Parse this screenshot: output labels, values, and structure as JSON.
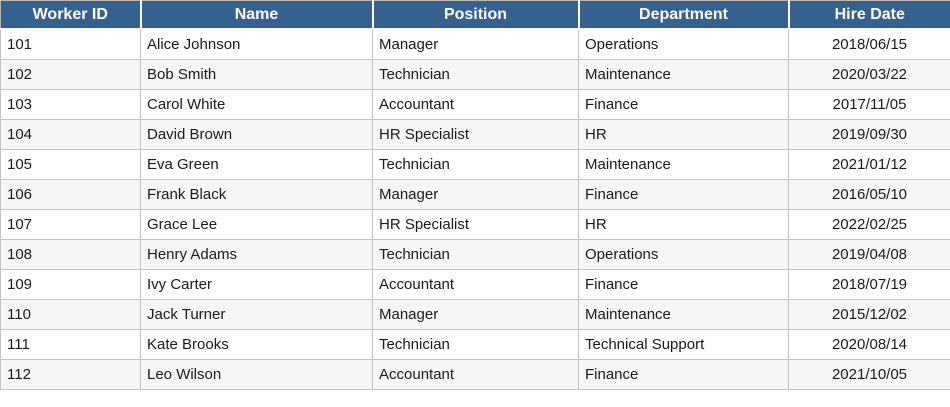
{
  "table": {
    "columns": [
      "Worker ID",
      "Name",
      "Position",
      "Department",
      "Hire Date"
    ],
    "rows": [
      [
        "101",
        "Alice Johnson",
        "Manager",
        "Operations",
        "2018/06/15"
      ],
      [
        "102",
        "Bob Smith",
        "Technician",
        "Maintenance",
        "2020/03/22"
      ],
      [
        "103",
        "Carol White",
        "Accountant",
        "Finance",
        "2017/11/05"
      ],
      [
        "104",
        "David Brown",
        "HR Specialist",
        "HR",
        "2019/09/30"
      ],
      [
        "105",
        "Eva Green",
        "Technician",
        "Maintenance",
        "2021/01/12"
      ],
      [
        "106",
        "Frank Black",
        "Manager",
        "Finance",
        "2016/05/10"
      ],
      [
        "107",
        "Grace Lee",
        "HR Specialist",
        "HR",
        "2022/02/25"
      ],
      [
        "108",
        "Henry Adams",
        "Technician",
        "Operations",
        "2019/04/08"
      ],
      [
        "109",
        "Ivy Carter",
        "Accountant",
        "Finance",
        "2018/07/19"
      ],
      [
        "110",
        "Jack Turner",
        "Manager",
        "Maintenance",
        "2015/12/02"
      ],
      [
        "111",
        "Kate Brooks",
        "Technician",
        "Technical Support",
        "2020/08/14"
      ],
      [
        "112",
        "Leo Wilson",
        "Accountant",
        "Finance",
        "2021/10/05"
      ]
    ],
    "colors": {
      "header_bg": "#35618F",
      "header_text": "#ffffff",
      "row_alt_bg": "#f6f6f6",
      "grid_border": "#c4c4c4"
    }
  }
}
